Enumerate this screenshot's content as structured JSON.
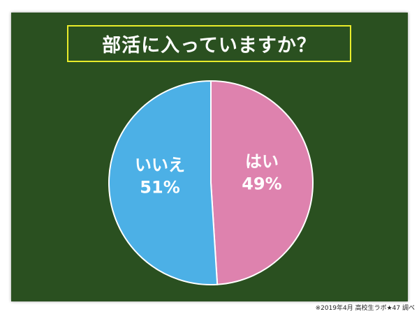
{
  "chart_data": {
    "type": "pie",
    "title": "部活に入っていますか？",
    "slices": [
      {
        "label": "はい",
        "value": 49,
        "display": "49%",
        "color": "#de82ae"
      },
      {
        "label": "いいえ",
        "value": 51,
        "display": "51%",
        "color": "#4cb0e6"
      }
    ],
    "start": "top",
    "direction": "clockwise"
  },
  "source": "※2019年4月 高校生ラボ★47 調べ",
  "colors": {
    "board": "#2a5020",
    "title_border": "#e8ec2a"
  }
}
